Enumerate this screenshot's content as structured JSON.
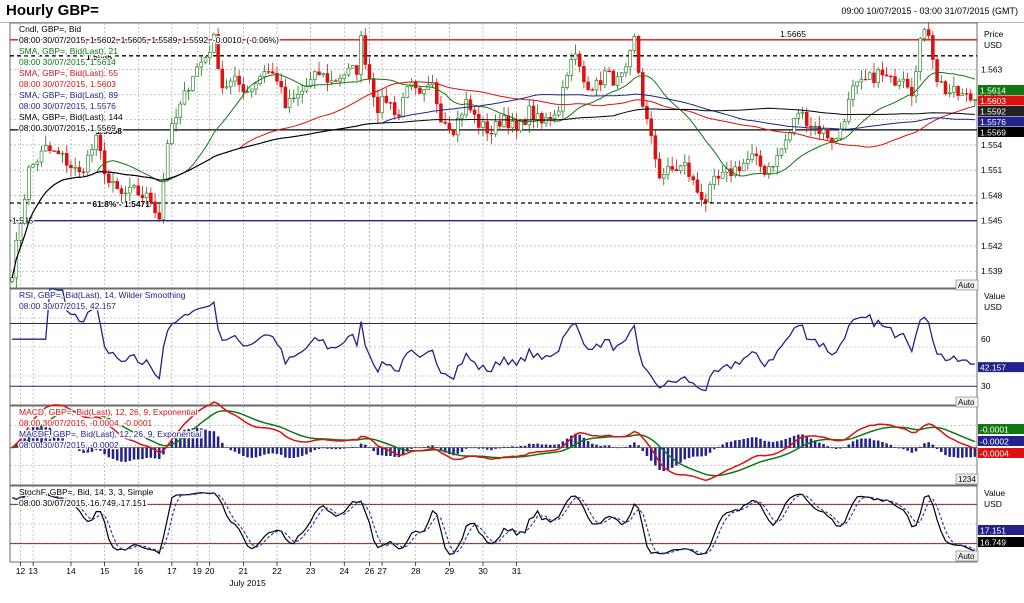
{
  "header": {
    "title": "Hourly GBP=",
    "range": "09:00 10/07/2015 - 03:00 31/07/2015 (GMT)"
  },
  "chart_data": [
    {
      "id": "price",
      "type": "candlestick",
      "axis_title": [
        "Price",
        "USD"
      ],
      "ylim": [
        1.537,
        1.5685
      ],
      "ticks": [
        1.539,
        1.542,
        1.545,
        1.548,
        1.551,
        1.554,
        1.557,
        1.56,
        1.563
      ],
      "tick_labels": [
        "1.539",
        "1.542",
        "1.545",
        "1.548",
        "1.551",
        "1.554",
        "1.557",
        "1.56",
        "1.563"
      ],
      "legend": [
        {
          "text": "Cndl, GBP=, Bid",
          "color": "#000000"
        },
        {
          "text": "08:00 30/07/2015, 1.5602, 1.5605, 1.5589, 1.5592, -0.0010, (-0.06%)",
          "color": "#000000"
        },
        {
          "text": "SMA, GBP=, Bid(Last), 21",
          "color": "#117711"
        },
        {
          "text": "08:00 30/07/2015, 1.5614",
          "color": "#117711"
        },
        {
          "text": "SMA, GBP=, Bid(Last), 55",
          "color": "#dd1111"
        },
        {
          "text": "08:00 30/07/2015, 1.5603",
          "color": "#dd1111"
        },
        {
          "text": "SMA, GBP=, Bid(Last), 89",
          "color": "#22228a"
        },
        {
          "text": "08:00 30/07/2015, 1.5576",
          "color": "#22228a"
        },
        {
          "text": "SMA, GBP=, Bid(Last), 144",
          "color": "#000000"
        },
        {
          "text": "08:00 30/07/2015, 1.5569",
          "color": "#000000"
        }
      ],
      "levels": [
        {
          "value": 1.5665,
          "label": "1.5665",
          "color": "#dd1111",
          "style": "solid"
        },
        {
          "value": 1.5646,
          "label": "1.5646",
          "color": "#000000",
          "style": "dashed"
        },
        {
          "value": 1.5558,
          "label": "1.5558",
          "color": "#000000",
          "style": "solid"
        },
        {
          "value": 1.5471,
          "label": "61.8% - 1.5471",
          "color": "#000000",
          "style": "dashed"
        },
        {
          "value": 1.545,
          "label": "1.545",
          "color": "#22228a",
          "style": "solid"
        }
      ],
      "value_tags": [
        {
          "value": 1.5614,
          "label": "1.5614",
          "color": "#117711"
        },
        {
          "value": 1.5603,
          "label": "1.5603",
          "color": "#dd1111"
        },
        {
          "value": 1.5592,
          "label": "1.5592",
          "color": "#222222"
        },
        {
          "value": 1.5576,
          "label": "1.5576",
          "color": "#22228a"
        },
        {
          "value": 1.5569,
          "label": "1.5569",
          "color": "#000000"
        }
      ],
      "anchors": [
        [
          0,
          1.539
        ],
        [
          4,
          1.551
        ],
        [
          8,
          1.5535
        ],
        [
          12,
          1.5525
        ],
        [
          16,
          1.5505
        ],
        [
          20,
          1.5545
        ],
        [
          23,
          1.5495
        ],
        [
          26,
          1.548
        ],
        [
          29,
          1.5485
        ],
        [
          33,
          1.5475
        ],
        [
          35,
          1.5455
        ],
        [
          37,
          1.5545
        ],
        [
          40,
          1.5585
        ],
        [
          43,
          1.5625
        ],
        [
          46,
          1.5645
        ],
        [
          48,
          1.5665
        ],
        [
          50,
          1.561
        ],
        [
          53,
          1.5615
        ],
        [
          56,
          1.5605
        ],
        [
          58,
          1.5615
        ],
        [
          60,
          1.563
        ],
        [
          63,
          1.562
        ],
        [
          65,
          1.5585
        ],
        [
          68,
          1.5598
        ],
        [
          71,
          1.5615
        ],
        [
          73,
          1.5625
        ],
        [
          76,
          1.5615
        ],
        [
          79,
          1.5625
        ],
        [
          82,
          1.563
        ],
        [
          83,
          1.5665
        ],
        [
          85,
          1.562
        ],
        [
          87,
          1.5585
        ],
        [
          89,
          1.5595
        ],
        [
          92,
          1.5575
        ],
        [
          94,
          1.5615
        ],
        [
          97,
          1.5595
        ],
        [
          100,
          1.561
        ],
        [
          102,
          1.5575
        ],
        [
          105,
          1.556
        ],
        [
          108,
          1.559
        ],
        [
          111,
          1.5565
        ],
        [
          114,
          1.5555
        ],
        [
          117,
          1.5575
        ],
        [
          120,
          1.5555
        ],
        [
          123,
          1.558
        ],
        [
          126,
          1.5565
        ],
        [
          130,
          1.5585
        ],
        [
          132,
          1.563
        ],
        [
          134,
          1.5645
        ],
        [
          136,
          1.5615
        ],
        [
          139,
          1.561
        ],
        [
          141,
          1.5625
        ],
        [
          144,
          1.5615
        ],
        [
          146,
          1.5625
        ],
        [
          148,
          1.5665
        ],
        [
          150,
          1.559
        ],
        [
          152,
          1.5545
        ],
        [
          154,
          1.5505
        ],
        [
          157,
          1.551
        ],
        [
          160,
          1.5515
        ],
        [
          163,
          1.5485
        ],
        [
          165,
          1.5475
        ],
        [
          167,
          1.5495
        ],
        [
          170,
          1.5505
        ],
        [
          173,
          1.5515
        ],
        [
          176,
          1.5525
        ],
        [
          179,
          1.551
        ],
        [
          182,
          1.5525
        ],
        [
          185,
          1.5555
        ],
        [
          187,
          1.558
        ],
        [
          190,
          1.5565
        ],
        [
          193,
          1.5555
        ],
        [
          196,
          1.5545
        ],
        [
          198,
          1.5575
        ],
        [
          200,
          1.5605
        ],
        [
          203,
          1.5615
        ],
        [
          206,
          1.5625
        ],
        [
          209,
          1.5615
        ],
        [
          212,
          1.5625
        ],
        [
          214,
          1.5605
        ],
        [
          216,
          1.5665
        ],
        [
          218,
          1.5675
        ],
        [
          220,
          1.562
        ],
        [
          222,
          1.5605
        ],
        [
          225,
          1.56
        ],
        [
          228,
          1.5595
        ]
      ],
      "ma_periods": [
        21,
        55,
        89,
        144
      ]
    },
    {
      "id": "rsi",
      "type": "line",
      "axis_title": [
        "Value",
        "USD"
      ],
      "ylim": [
        18,
        92
      ],
      "ticks": [
        30,
        60
      ],
      "tick_labels": [
        "30",
        "60"
      ],
      "guides": [
        30,
        70
      ],
      "legend": [
        {
          "text": "RSI, GBP=, Bid(Last), 14, Wilder Smoothing",
          "color": "#22228a"
        },
        {
          "text": "08:00 30/07/2015, 42.157",
          "color": "#22228a"
        }
      ],
      "value_tags": [
        {
          "value": 42.157,
          "label": "42.157",
          "color": "#22228a"
        }
      ]
    },
    {
      "id": "macd",
      "type": "line+histogram",
      "ylim": [
        -0.0036,
        0.004
      ],
      "legend": [
        {
          "text": "MACD, GBP=, Bid(Last), 12, 26, 9, Exponential",
          "color": "#dd1111"
        },
        {
          "text": "08:00 30/07/2015, -0.0004, -0.0001",
          "color": "#dd1111"
        },
        {
          "text": "MACDF, GBP=, Bid(Last), 12, 26, 9, Exponential",
          "color": "#22228a"
        },
        {
          "text": "08:00 30/07/2015, -0.0002",
          "color": "#22228a"
        }
      ],
      "value_tags": [
        {
          "value": -0.0001,
          "label": "-0.0001",
          "color": "#117711"
        },
        {
          "value": -0.0002,
          "label": "-0.0002",
          "color": "#22228a"
        },
        {
          "value": -0.0004,
          "label": "-0.0004",
          "color": "#dd1111"
        }
      ]
    },
    {
      "id": "stoch",
      "type": "line",
      "axis_title": [
        "Value",
        "USD"
      ],
      "ylim": [
        -8,
        108
      ],
      "guides": [
        20,
        80
      ],
      "legend": [
        {
          "text": "StochF, GBP=, Bid, 14, 3, 3, Simple",
          "color": "#000000"
        },
        {
          "text": "08:00 30/07/2015, 16.749, 17.151",
          "color": "#000000"
        }
      ],
      "value_tags": [
        {
          "value": 17.151,
          "label": "17.151",
          "color": "#22228a"
        },
        {
          "value": 16.749,
          "label": "16.749",
          "color": "#000000"
        }
      ]
    }
  ],
  "x_axis": {
    "label": "July 2015",
    "bars": 230,
    "ticks": [
      {
        "label": "12",
        "bar": 2
      },
      {
        "label": "13",
        "bar": 5
      },
      {
        "label": "14",
        "bar": 14
      },
      {
        "label": "15",
        "bar": 22
      },
      {
        "label": "16",
        "bar": 30
      },
      {
        "label": "17",
        "bar": 38
      },
      {
        "label": "19",
        "bar": 44
      },
      {
        "label": "20",
        "bar": 47
      },
      {
        "label": "21",
        "bar": 55
      },
      {
        "label": "22",
        "bar": 63
      },
      {
        "label": "23",
        "bar": 71
      },
      {
        "label": "24",
        "bar": 79
      },
      {
        "label": "26",
        "bar": 85
      },
      {
        "label": "27",
        "bar": 88
      },
      {
        "label": "28",
        "bar": 96
      },
      {
        "label": "29",
        "bar": 104
      },
      {
        "label": "30",
        "bar": 112
      },
      {
        "label": "31",
        "bar": 120
      }
    ]
  },
  "buttons": {
    "auto": "Auto",
    "zoom": "1234"
  },
  "colors": {
    "grid": "#9a9a9a",
    "candle_up": "#117711",
    "candle_down": "#dd1111"
  }
}
